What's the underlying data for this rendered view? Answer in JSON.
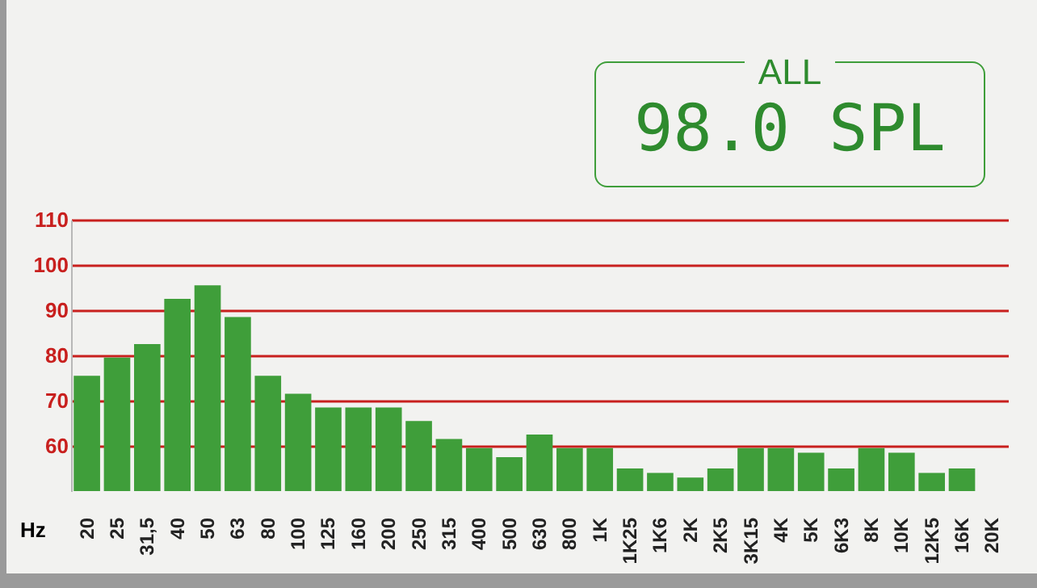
{
  "chart_data": {
    "type": "bar",
    "xlabel": "Hz",
    "categories": [
      "20",
      "25",
      "31,5",
      "40",
      "50",
      "63",
      "80",
      "100",
      "125",
      "160",
      "200",
      "250",
      "315",
      "400",
      "500",
      "630",
      "800",
      "1K",
      "1K25",
      "1K6",
      "2K",
      "2K5",
      "3K15",
      "4K",
      "5K",
      "6K3",
      "8K",
      "10K",
      "12K5",
      "16K",
      "20K"
    ],
    "values": [
      75.5,
      79.5,
      82.5,
      92.5,
      95.5,
      88.5,
      75.5,
      71.5,
      68.5,
      68.5,
      68.5,
      65.5,
      61.5,
      59.5,
      57.5,
      62.5,
      59.5,
      59.5,
      55,
      54,
      53,
      55,
      59.5,
      59.5,
      58.5,
      55,
      59.5,
      58.5,
      54,
      55,
      null
    ],
    "color": "#3f9e3a",
    "ylim": [
      50,
      110
    ],
    "yticks": [
      60,
      70,
      80,
      90,
      100,
      110
    ],
    "grid": "y",
    "annotations": [
      "ALL",
      "98.0 SPL"
    ]
  }
}
